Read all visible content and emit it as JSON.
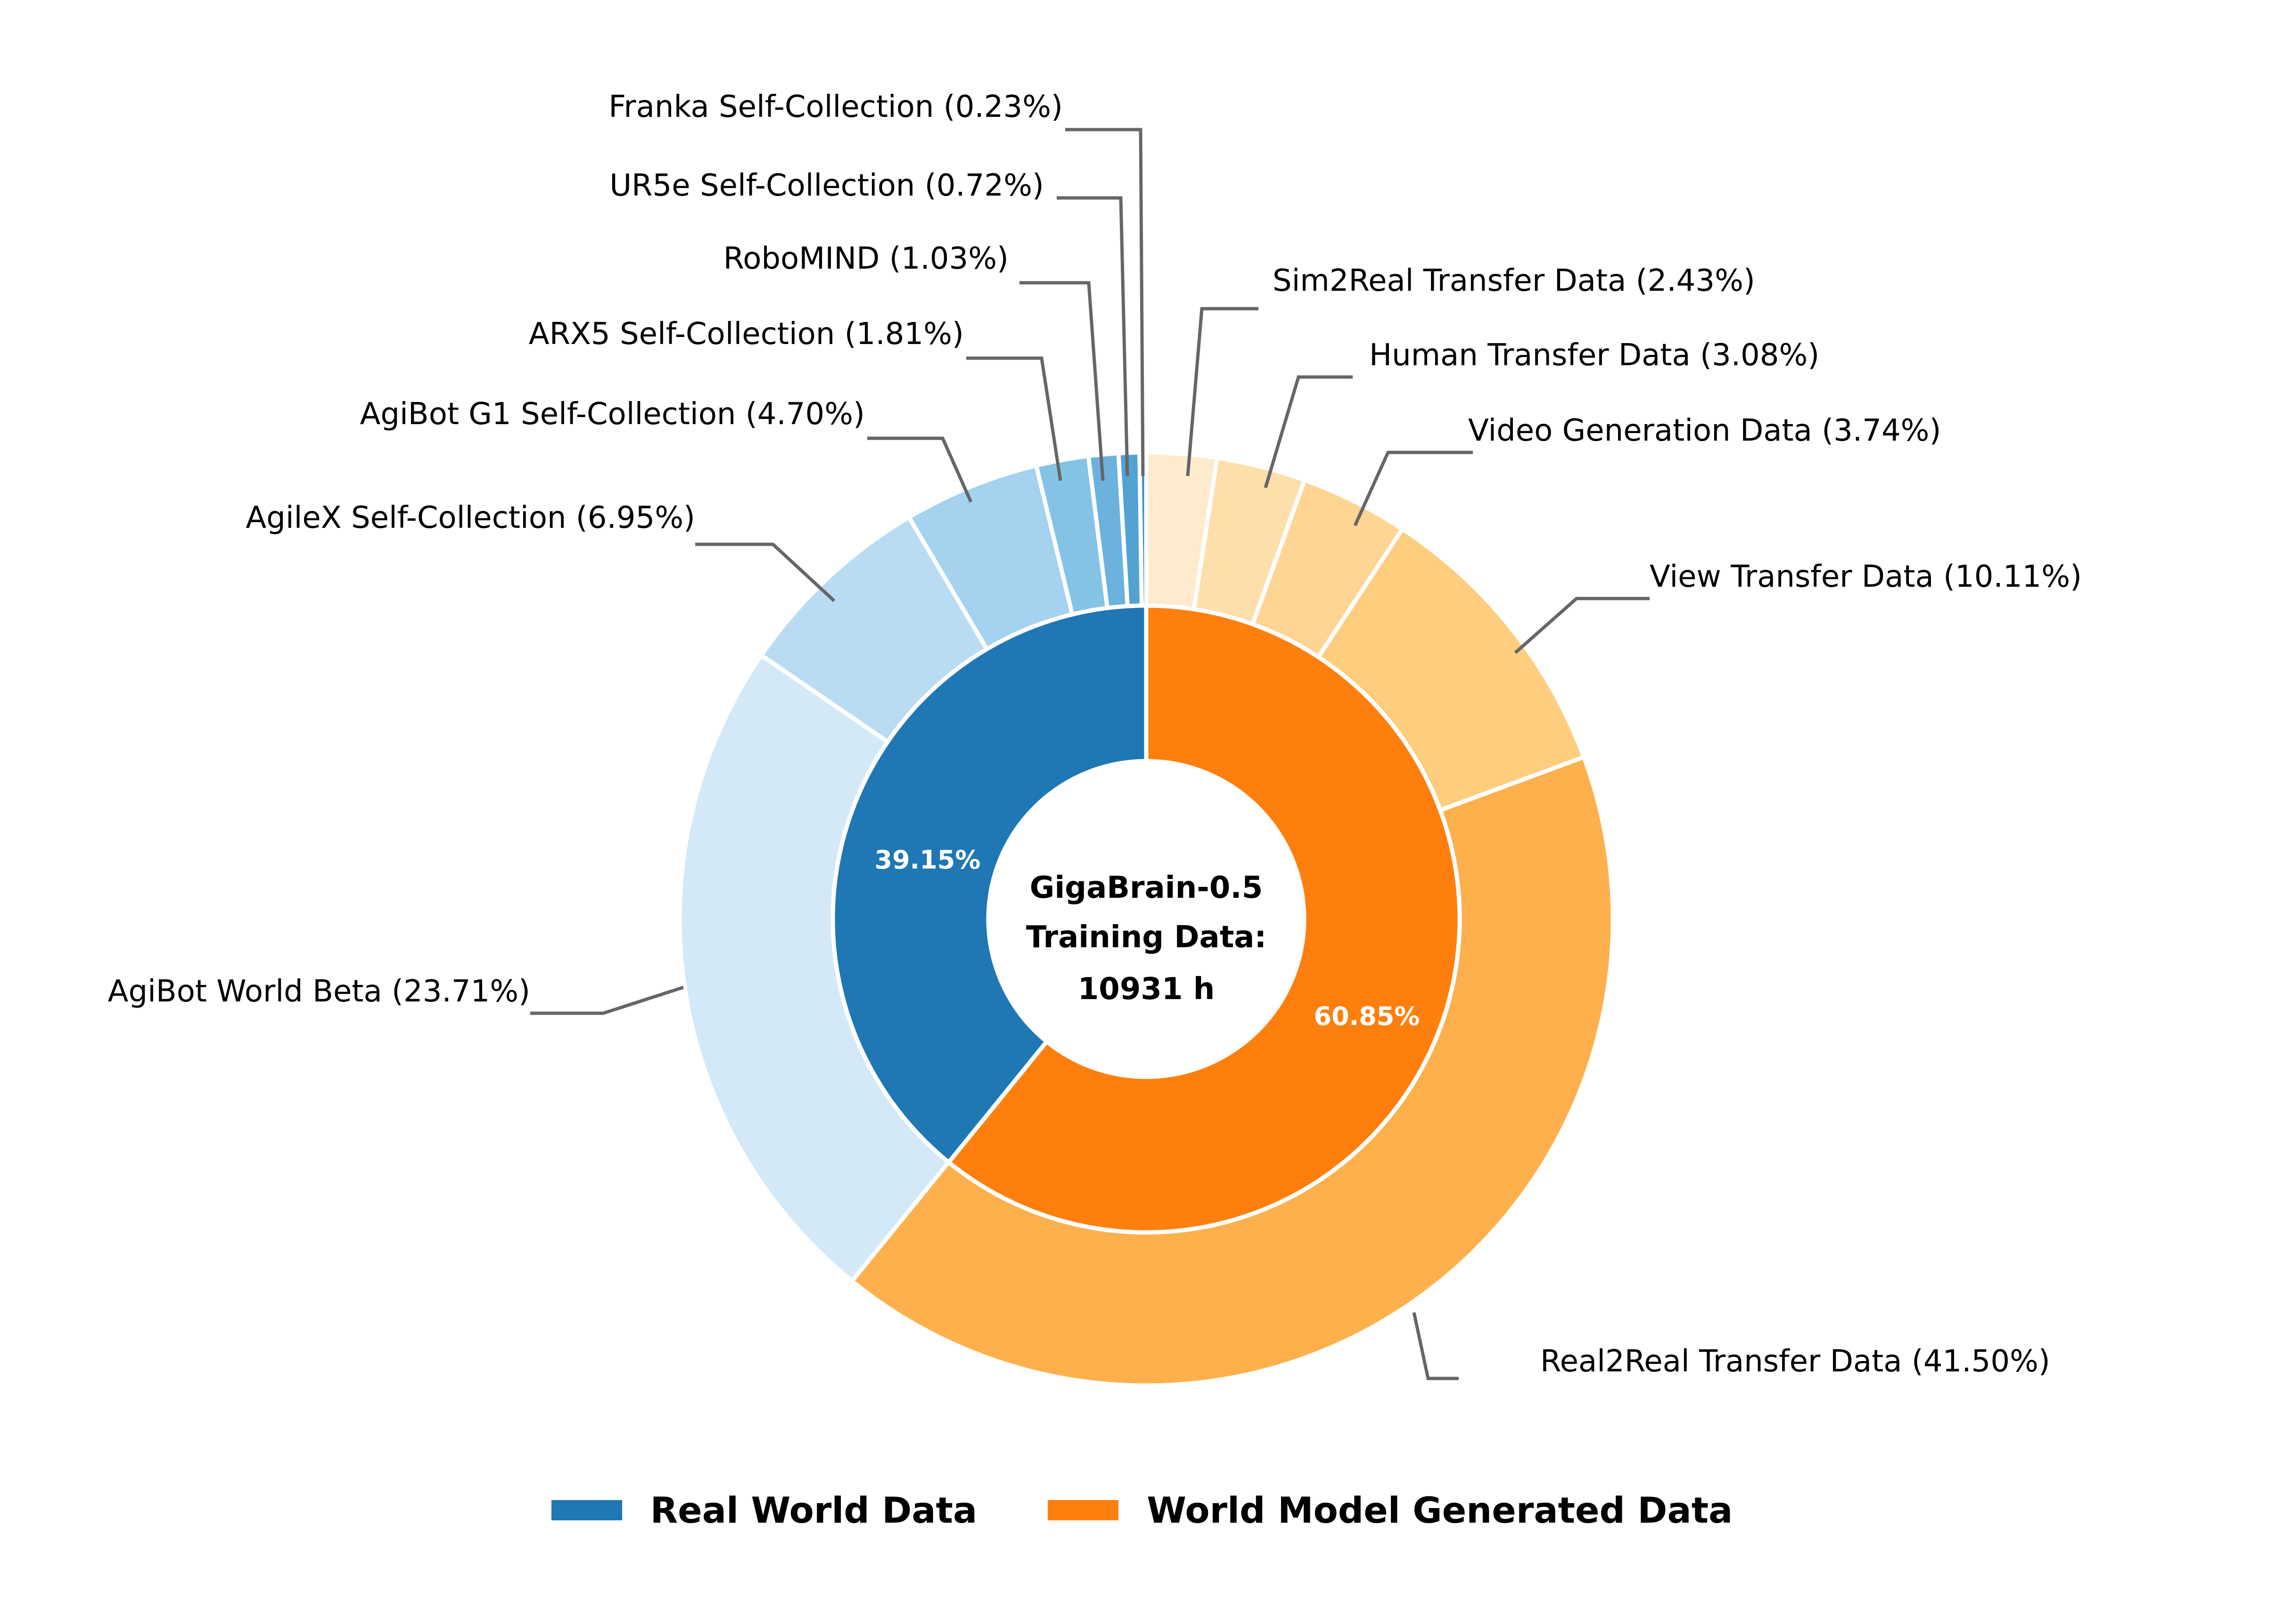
{
  "chart_data": {
    "type": "pie",
    "subtype": "nested-donut",
    "center_text": [
      "GigaBrain-0.5",
      "Training Data:",
      "10931 h"
    ],
    "inner_ring": [
      {
        "name": "Real World Data",
        "value": 39.15,
        "label": "39.15%",
        "color": "#1f77b4"
      },
      {
        "name": "World Model Generated Data",
        "value": 60.85,
        "label": "60.85%",
        "color": "#ff7f0e"
      }
    ],
    "outer_ring": [
      {
        "name": "Franka Self-Collection",
        "value": 0.23,
        "group": "Real World Data",
        "color": "#3a8cc4"
      },
      {
        "name": "UR5e Self-Collection",
        "value": 0.72,
        "group": "Real World Data",
        "color": "#52a2d2"
      },
      {
        "name": "RoboMIND",
        "value": 1.03,
        "group": "Real World Data",
        "color": "#6bb2dc"
      },
      {
        "name": "ARX5 Self-Collection",
        "value": 1.81,
        "group": "Real World Data",
        "color": "#85c3e6"
      },
      {
        "name": "AgiBot G1 Self-Collection",
        "value": 4.7,
        "group": "Real World Data",
        "color": "#a4d2ef"
      },
      {
        "name": "AgileX Self-Collection",
        "value": 6.95,
        "group": "Real World Data",
        "color": "#badcf3"
      },
      {
        "name": "AgiBot World Beta",
        "value": 23.71,
        "group": "Real World Data",
        "color": "#d4e9f7"
      },
      {
        "name": "Sim2Real Transfer Data",
        "value": 2.43,
        "group": "World Model Generated Data",
        "color": "#feebcd"
      },
      {
        "name": "Human Transfer Data",
        "value": 3.08,
        "group": "World Model Generated Data",
        "color": "#fddfac"
      },
      {
        "name": "Video Generation Data",
        "value": 3.74,
        "group": "World Model Generated Data",
        "color": "#fed592"
      },
      {
        "name": "View Transfer Data",
        "value": 10.11,
        "group": "World Model Generated Data",
        "color": "#fecd7e"
      },
      {
        "name": "Real2Real Transfer Data",
        "value": 41.5,
        "group": "World Model Generated Data",
        "color": "#feb04d"
      }
    ],
    "legend": {
      "position": "bottom",
      "entries": [
        {
          "label": "Real World Data",
          "color": "#1f77b4"
        },
        {
          "label": "World Model Generated Data",
          "color": "#ff7f0e"
        }
      ]
    }
  },
  "labels": {
    "franka": "Franka Self-Collection (0.23%)",
    "ur5e": "UR5e Self-Collection (0.72%)",
    "robomind": "RoboMIND (1.03%)",
    "arx5": "ARX5 Self-Collection (1.81%)",
    "agibot_g1": "AgiBot G1 Self-Collection (4.70%)",
    "agilex": "AgileX Self-Collection (6.95%)",
    "agibot_world": "AgiBot World Beta (23.71%)",
    "sim2real": "Sim2Real Transfer Data (2.43%)",
    "human": "Human Transfer Data (3.08%)",
    "video": "Video Generation Data (3.74%)",
    "view": "View Transfer Data (10.11%)",
    "real2real": "Real2Real Transfer Data (41.50%)"
  },
  "center": {
    "line1": "GigaBrain-0.5",
    "line2": "Training Data:",
    "line3": "10931 h"
  },
  "inner_pct": {
    "real": "39.15%",
    "generated": "60.85%"
  },
  "legend": {
    "real_label": "Real World Data",
    "real_color": "#1f77b4",
    "generated_label": "World Model Generated Data",
    "generated_color": "#ff7f0e"
  }
}
